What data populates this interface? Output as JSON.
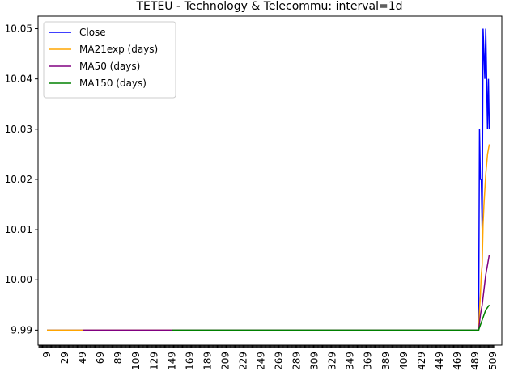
{
  "chart_data": {
    "type": "line",
    "title": "TETEU - Technology & Telecommu: interval=1d",
    "xlabel": "",
    "ylabel": "",
    "xlim": [
      -1,
      519
    ],
    "ylim": [
      9.987,
      10.0525
    ],
    "x_ticks": [
      9,
      29,
      49,
      69,
      89,
      109,
      129,
      149,
      169,
      189,
      209,
      229,
      249,
      269,
      289,
      309,
      329,
      349,
      369,
      389,
      409,
      429,
      449,
      469,
      489,
      509
    ],
    "y_ticks": [
      {
        "value": 9.99,
        "label": "9.99"
      },
      {
        "value": 10.0,
        "label": "10.00"
      },
      {
        "value": 10.01,
        "label": "10.01"
      },
      {
        "value": 10.02,
        "label": "10.02"
      },
      {
        "value": 10.03,
        "label": "10.03"
      },
      {
        "value": 10.04,
        "label": "10.04"
      },
      {
        "value": 10.05,
        "label": "10.05"
      }
    ],
    "grid": false,
    "legend_position": "upper-left",
    "series": [
      {
        "name": "Close",
        "color": "#0000ff",
        "points": [
          [
            9,
            9.99
          ],
          [
            493,
            9.99
          ],
          [
            494,
            10.03
          ],
          [
            495,
            10.02
          ],
          [
            496,
            10.02
          ],
          [
            497,
            10.01
          ],
          [
            498,
            10.05
          ],
          [
            499,
            10.045
          ],
          [
            500,
            10.04
          ],
          [
            501,
            10.05
          ],
          [
            502,
            10.04
          ],
          [
            503,
            10.03
          ],
          [
            504,
            10.04
          ],
          [
            505,
            10.03
          ]
        ]
      },
      {
        "name": "MA21exp (days)",
        "color": "#ffa500",
        "points": [
          [
            9,
            9.99
          ],
          [
            493,
            9.99
          ],
          [
            494,
            9.994
          ],
          [
            495,
            9.997
          ],
          [
            496,
            10.001
          ],
          [
            497,
            10.003
          ],
          [
            498,
            10.011
          ],
          [
            499,
            10.015
          ],
          [
            500,
            10.018
          ],
          [
            501,
            10.021
          ],
          [
            502,
            10.023
          ],
          [
            503,
            10.025
          ],
          [
            504,
            10.026
          ],
          [
            505,
            10.027
          ]
        ]
      },
      {
        "name": "MA50 (days)",
        "color": "#800080",
        "points": [
          [
            49,
            9.99
          ],
          [
            493,
            9.99
          ],
          [
            495,
            9.993
          ],
          [
            497,
            9.995
          ],
          [
            499,
            9.998
          ],
          [
            501,
            10.001
          ],
          [
            503,
            10.003
          ],
          [
            505,
            10.005
          ]
        ]
      },
      {
        "name": "MA150 (days)",
        "color": "#008000",
        "points": [
          [
            149,
            9.99
          ],
          [
            493,
            9.99
          ],
          [
            497,
            9.992
          ],
          [
            501,
            9.994
          ],
          [
            505,
            9.995
          ]
        ]
      }
    ]
  }
}
